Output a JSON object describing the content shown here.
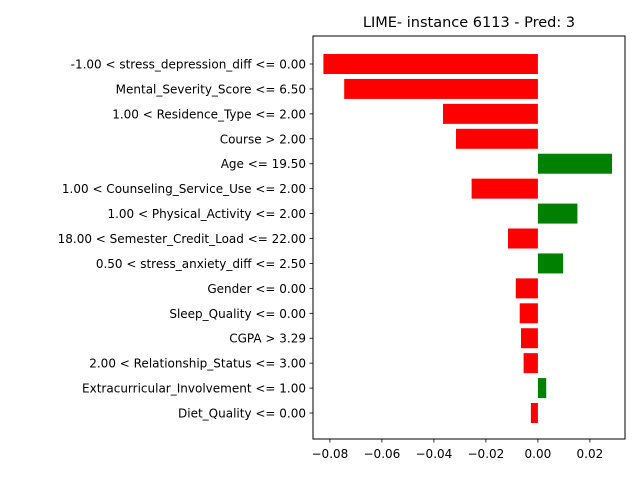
{
  "chart_data": {
    "type": "bar",
    "orientation": "horizontal",
    "title": "LIME- instance 6113 - Pred: 3",
    "xlabel": "",
    "ylabel": "",
    "xlim": [
      -0.0865,
      0.0335
    ],
    "xticks": [
      -0.08,
      -0.06,
      -0.04,
      -0.02,
      0.0,
      0.02
    ],
    "xtick_labels": [
      "−0.08",
      "−0.06",
      "−0.04",
      "−0.02",
      "0.00",
      "0.02"
    ],
    "grid": false,
    "legend": "none",
    "colors": {
      "positive": "#008000",
      "negative": "#ff0000"
    },
    "categories": [
      "-1.00 < stress_depression_diff <= 0.00",
      "Mental_Severity_Score <= 6.50",
      "1.00 < Residence_Type <= 2.00",
      "Course > 2.00",
      "Age <= 19.50",
      "1.00 < Counseling_Service_Use <= 2.00",
      "1.00 < Physical_Activity <= 2.00",
      "18.00 < Semester_Credit_Load <= 22.00",
      "0.50 < stress_anxiety_diff <= 2.50",
      "Gender <= 0.00",
      "Sleep_Quality <= 0.00",
      "CGPA > 3.29",
      "2.00 < Relationship_Status <= 3.00",
      "Extracurricular_Involvement <= 1.00",
      "Diet_Quality <= 0.00"
    ],
    "values": [
      -0.0825,
      -0.0745,
      -0.0365,
      -0.0315,
      0.0285,
      -0.0255,
      0.0152,
      -0.0115,
      0.0097,
      -0.0085,
      -0.007,
      -0.0065,
      -0.0055,
      0.0032,
      -0.0027
    ]
  }
}
